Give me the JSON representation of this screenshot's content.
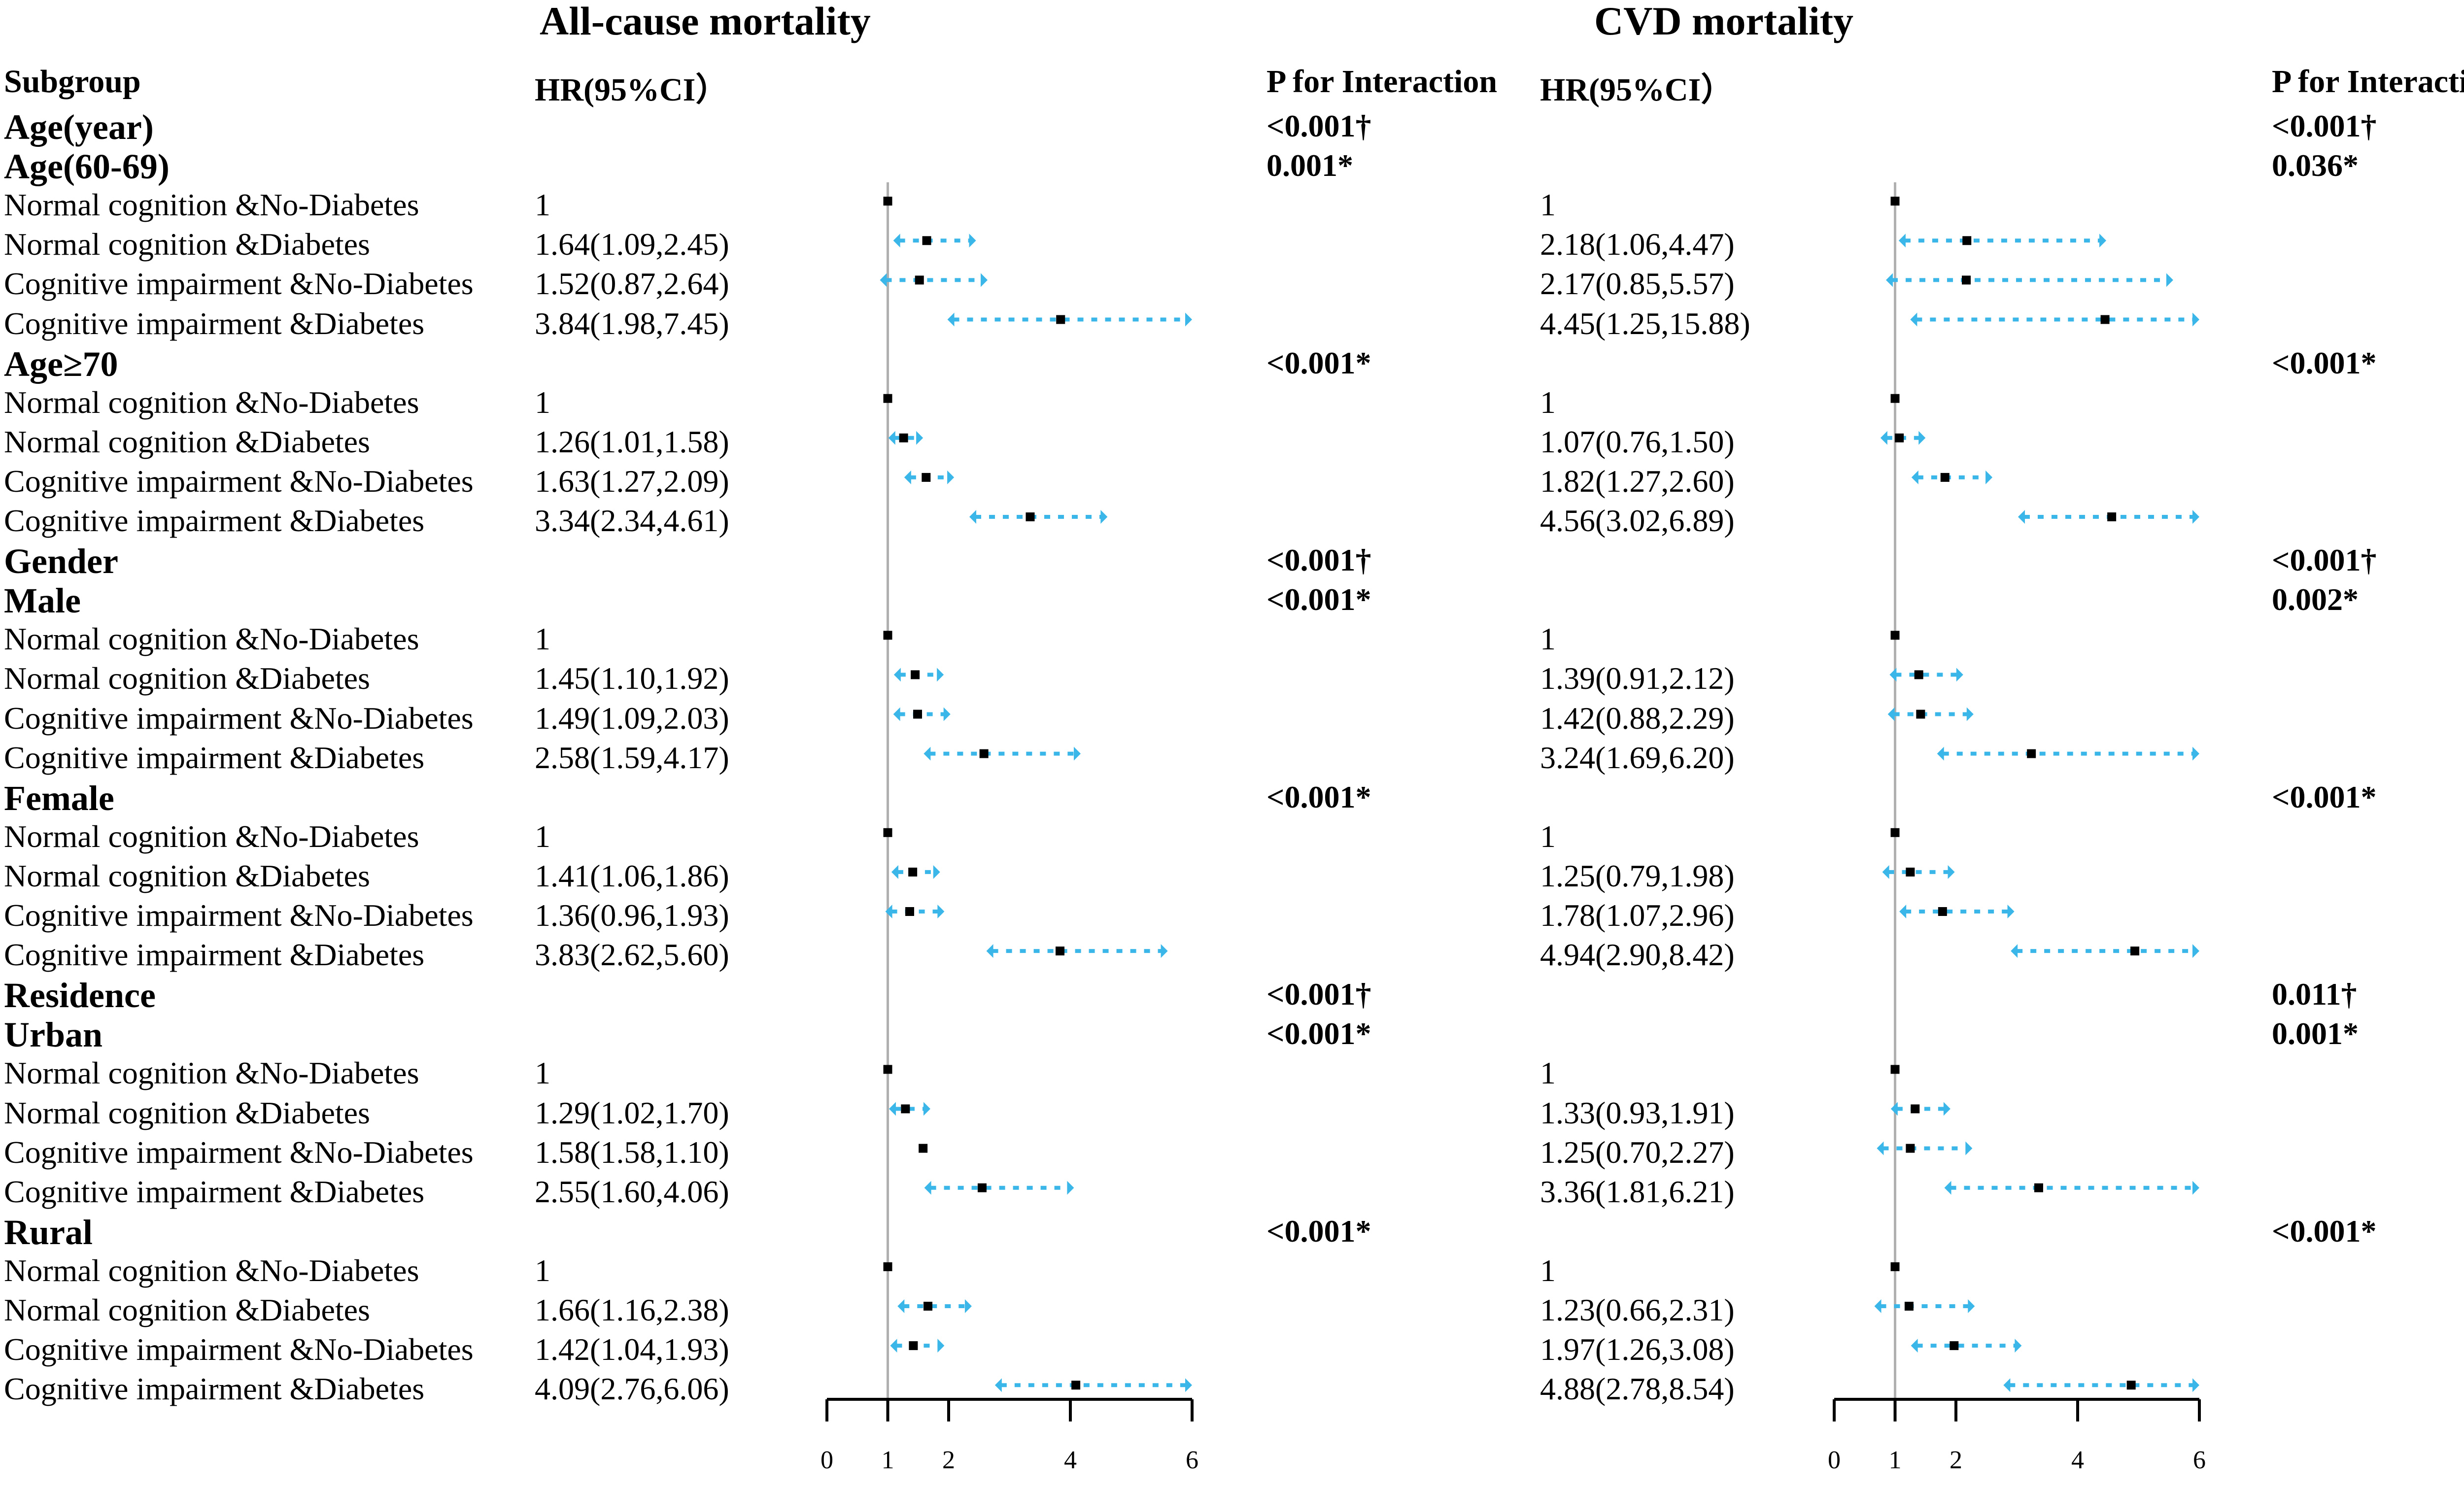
{
  "panels": [
    {
      "title": "All-cause mortality",
      "hr_header": "HR(95%CI）",
      "p_header": "P for  Interaction"
    },
    {
      "title": "CVD mortality",
      "hr_header": "HR(95%CI）",
      "p_header": "P for  Interaction"
    }
  ],
  "subgroup_header": "Subgroup",
  "colors": {
    "ci": "#3ab7e8",
    "point": "#000000",
    "ref_line": "#b0b0b0",
    "axis": "#000000"
  },
  "chart_data": {
    "type": "forest",
    "xlim": [
      0,
      6
    ],
    "xticks": [
      0,
      1,
      2,
      4,
      6
    ],
    "reference_line": 1,
    "rows": [
      {
        "label": "Age(year)",
        "heading": true,
        "p": [
          "<0.001†",
          "<0.001†"
        ]
      },
      {
        "label": "Age(60-69)",
        "heading": true,
        "p": [
          "0.001*",
          "0.036*"
        ]
      },
      {
        "label": "Normal cognition &No-Diabetes",
        "hr": [
          "1",
          "1"
        ],
        "est": [
          [
            1,
            null,
            null
          ],
          [
            1,
            null,
            null
          ]
        ]
      },
      {
        "label": "Normal cognition &Diabetes",
        "hr": [
          "1.64(1.09,2.45)",
          "2.18(1.06,4.47)"
        ],
        "est": [
          [
            1.64,
            1.09,
            2.45
          ],
          [
            2.18,
            1.06,
            4.47
          ]
        ]
      },
      {
        "label": "Cognitive impairment &No-Diabetes",
        "hr": [
          "1.52(0.87,2.64)",
          "2.17(0.85,5.57)"
        ],
        "est": [
          [
            1.52,
            0.87,
            2.64
          ],
          [
            2.17,
            0.85,
            5.57
          ]
        ]
      },
      {
        "label": "Cognitive impairment &Diabetes",
        "hr": [
          "3.84(1.98,7.45)",
          "4.45(1.25,15.88)"
        ],
        "est": [
          [
            3.84,
            1.98,
            7.45
          ],
          [
            4.45,
            1.25,
            15.88
          ]
        ]
      },
      {
        "label": "Age≥70",
        "heading": true,
        "p": [
          "<0.001*",
          "<0.001*"
        ]
      },
      {
        "label": "Normal cognition &No-Diabetes",
        "hr": [
          "1",
          "1"
        ],
        "est": [
          [
            1,
            null,
            null
          ],
          [
            1,
            null,
            null
          ]
        ]
      },
      {
        "label": "Normal cognition &Diabetes",
        "hr": [
          "1.26(1.01,1.58)",
          "1.07(0.76,1.50)"
        ],
        "est": [
          [
            1.26,
            1.01,
            1.58
          ],
          [
            1.07,
            0.76,
            1.5
          ]
        ]
      },
      {
        "label": "Cognitive impairment &No-Diabetes",
        "hr": [
          "1.63(1.27,2.09)",
          "1.82(1.27,2.60)"
        ],
        "est": [
          [
            1.63,
            1.27,
            2.09
          ],
          [
            1.82,
            1.27,
            2.6
          ]
        ]
      },
      {
        "label": "Cognitive impairment &Diabetes",
        "hr": [
          "3.34(2.34,4.61)",
          "4.56(3.02,6.89)"
        ],
        "est": [
          [
            3.34,
            2.34,
            4.61
          ],
          [
            4.56,
            3.02,
            6.89
          ]
        ]
      },
      {
        "label": "Gender",
        "heading": true,
        "p": [
          "<0.001†",
          "<0.001†"
        ]
      },
      {
        "label": "Male",
        "heading": true,
        "p": [
          "<0.001*",
          "0.002*"
        ]
      },
      {
        "label": "Normal cognition &No-Diabetes",
        "hr": [
          "1",
          "1"
        ],
        "est": [
          [
            1,
            null,
            null
          ],
          [
            1,
            null,
            null
          ]
        ]
      },
      {
        "label": "Normal cognition &Diabetes",
        "hr": [
          "1.45(1.10,1.92)",
          "1.39(0.91,2.12)"
        ],
        "est": [
          [
            1.45,
            1.1,
            1.92
          ],
          [
            1.39,
            0.91,
            2.12
          ]
        ]
      },
      {
        "label": "Cognitive impairment &No-Diabetes",
        "hr": [
          "1.49(1.09,2.03)",
          "1.42(0.88,2.29)"
        ],
        "est": [
          [
            1.49,
            1.09,
            2.03
          ],
          [
            1.42,
            0.88,
            2.29
          ]
        ]
      },
      {
        "label": "Cognitive impairment &Diabetes",
        "hr": [
          "2.58(1.59,4.17)",
          "3.24(1.69,6.20)"
        ],
        "est": [
          [
            2.58,
            1.59,
            4.17
          ],
          [
            3.24,
            1.69,
            6.2
          ]
        ]
      },
      {
        "label": "Female",
        "heading": true,
        "p": [
          "<0.001*",
          "<0.001*"
        ]
      },
      {
        "label": "Normal cognition &No-Diabetes",
        "hr": [
          "1",
          "1"
        ],
        "est": [
          [
            1,
            null,
            null
          ],
          [
            1,
            null,
            null
          ]
        ]
      },
      {
        "label": "Normal cognition &Diabetes",
        "hr": [
          "1.41(1.06,1.86)",
          "1.25(0.79,1.98)"
        ],
        "est": [
          [
            1.41,
            1.06,
            1.86
          ],
          [
            1.25,
            0.79,
            1.98
          ]
        ]
      },
      {
        "label": "Cognitive impairment &No-Diabetes",
        "hr": [
          "1.36(0.96,1.93)",
          "1.78(1.07,2.96)"
        ],
        "est": [
          [
            1.36,
            0.96,
            1.93
          ],
          [
            1.78,
            1.07,
            2.96
          ]
        ]
      },
      {
        "label": "Cognitive impairment &Diabetes",
        "hr": [
          "3.83(2.62,5.60)",
          "4.94(2.90,8.42)"
        ],
        "est": [
          [
            3.83,
            2.62,
            5.6
          ],
          [
            4.94,
            2.9,
            8.42
          ]
        ]
      },
      {
        "label": "Residence",
        "heading": true,
        "p": [
          "<0.001†",
          "0.011†"
        ]
      },
      {
        "label": "Urban",
        "heading": true,
        "p": [
          "<0.001*",
          "0.001*"
        ]
      },
      {
        "label": "Normal cognition &No-Diabetes",
        "hr": [
          "1",
          "1"
        ],
        "est": [
          [
            1,
            null,
            null
          ],
          [
            1,
            null,
            null
          ]
        ]
      },
      {
        "label": "Normal cognition &Diabetes",
        "hr": [
          "1.29(1.02,1.70)",
          "1.33(0.93,1.91)"
        ],
        "est": [
          [
            1.29,
            1.02,
            1.7
          ],
          [
            1.33,
            0.93,
            1.91
          ]
        ]
      },
      {
        "label": "Cognitive impairment &No-Diabetes",
        "hr": [
          "1.58(1.58,1.10)",
          "1.25(0.70,2.27)"
        ],
        "est": [
          [
            1.58,
            null,
            null
          ],
          [
            1.25,
            0.7,
            2.27
          ]
        ]
      },
      {
        "label": "Cognitive impairment &Diabetes",
        "hr": [
          "2.55(1.60,4.06)",
          "3.36(1.81,6.21)"
        ],
        "est": [
          [
            2.55,
            1.6,
            4.06
          ],
          [
            3.36,
            1.81,
            6.21
          ]
        ]
      },
      {
        "label": "Rural",
        "heading": true,
        "p": [
          "<0.001*",
          "<0.001*"
        ]
      },
      {
        "label": "Normal cognition &No-Diabetes",
        "hr": [
          "1",
          "1"
        ],
        "est": [
          [
            1,
            null,
            null
          ],
          [
            1,
            null,
            null
          ]
        ]
      },
      {
        "label": "Normal cognition &Diabetes",
        "hr": [
          "1.66(1.16,2.38)",
          "1.23(0.66,2.31)"
        ],
        "est": [
          [
            1.66,
            1.16,
            2.38
          ],
          [
            1.23,
            0.66,
            2.31
          ]
        ]
      },
      {
        "label": "Cognitive impairment &No-Diabetes",
        "hr": [
          "1.42(1.04,1.93)",
          "1.97(1.26,3.08)"
        ],
        "est": [
          [
            1.42,
            1.04,
            1.93
          ],
          [
            1.97,
            1.26,
            3.08
          ]
        ]
      },
      {
        "label": "Cognitive impairment &Diabetes",
        "hr": [
          "4.09(2.76,6.06)",
          "4.88(2.78,8.54)"
        ],
        "est": [
          [
            4.09,
            2.76,
            6.06
          ],
          [
            4.88,
            2.78,
            8.54
          ]
        ]
      }
    ]
  }
}
